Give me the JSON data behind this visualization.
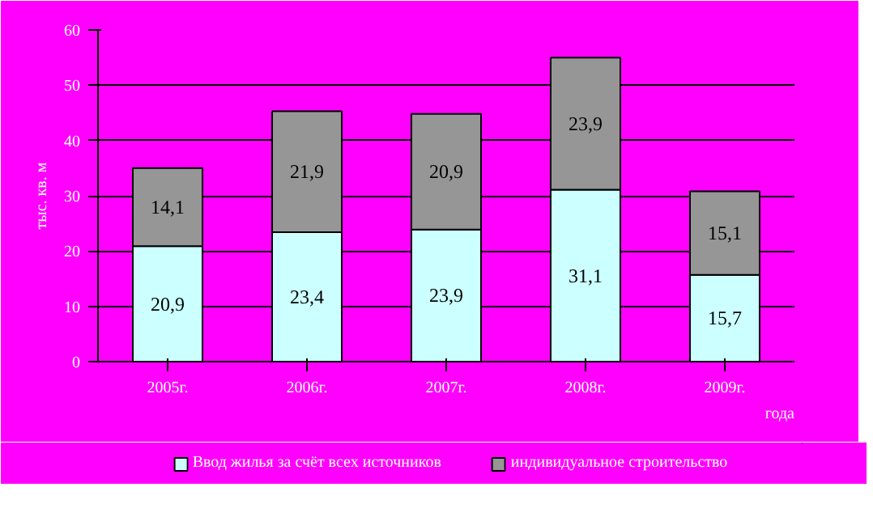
{
  "chart_data": {
    "type": "bar",
    "stacked": true,
    "categories": [
      "2005г.",
      "2006г.",
      "2007г.",
      "2008г.",
      "2009г."
    ],
    "series": [
      {
        "name": "Ввод жилья за счёт всех источников",
        "color": "#ccffff",
        "values": [
          20.9,
          23.4,
          23.9,
          31.1,
          15.7
        ],
        "value_labels": [
          "20,9",
          "23,4",
          "23,9",
          "31,1",
          "15,7"
        ]
      },
      {
        "name": "индивидуальное строительство",
        "color": "#969696",
        "values": [
          14.1,
          21.9,
          20.9,
          23.9,
          15.1
        ],
        "value_labels": [
          "14,1",
          "21,9",
          "20,9",
          "23,9",
          "15,1"
        ]
      }
    ],
    "xlabel": "года",
    "ylabel": "тыс. кв. м",
    "ylim": [
      0,
      60
    ],
    "yticks": [
      0,
      10,
      20,
      30,
      40,
      50,
      60
    ],
    "grid": "y",
    "legend": "bottom"
  }
}
